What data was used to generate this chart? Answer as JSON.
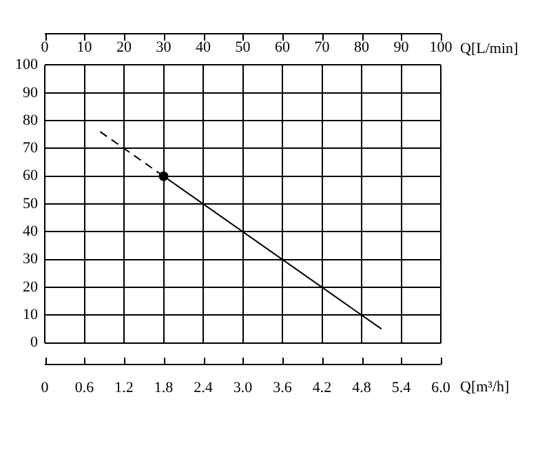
{
  "chart_data": {
    "type": "line",
    "xlabel": "Q[m³/h]",
    "x2label": "Q[L/min]",
    "xlim": [
      0,
      6
    ],
    "xticks": [
      0,
      0.6,
      1.2,
      1.8,
      2.4,
      {
        "value": 3,
        "label": "3.0"
      },
      3.6,
      4.2,
      4.8,
      5.4,
      {
        "value": 6,
        "label": "6.0"
      }
    ],
    "x2lim": [
      0,
      100
    ],
    "x2ticks": [
      0,
      10,
      20,
      30,
      40,
      50,
      60,
      70,
      80,
      90,
      100
    ],
    "ylim": [
      0,
      100
    ],
    "yticks": [
      0,
      10,
      20,
      30,
      40,
      50,
      60,
      70,
      80,
      90,
      100
    ],
    "grid": true,
    "legend": false,
    "series": [
      {
        "line_style": "dashed",
        "marker": "none",
        "color": "#000000",
        "x": [
          0.84,
          1.8
        ],
        "values": [
          76,
          60
        ]
      },
      {
        "line_style": "solid",
        "marker": "none",
        "color": "#000000",
        "x": [
          1.8,
          5.1
        ],
        "values": [
          60,
          5
        ]
      },
      {
        "type": "scatter",
        "marker": "circle",
        "color": "#000000",
        "x": [
          1.8
        ],
        "values": [
          60
        ]
      }
    ]
  }
}
